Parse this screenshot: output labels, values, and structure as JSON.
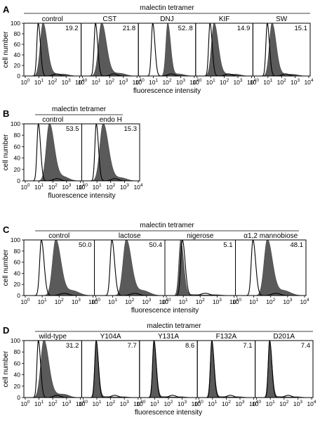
{
  "figure": {
    "panels": [
      {
        "letter": "A",
        "header": "malectin tetramer",
        "ylabel": "cell number",
        "xlabel": "fluorescence intensity",
        "yticks": [
          "0",
          "20",
          "40",
          "60",
          "80",
          "100"
        ],
        "xtick_labels": [
          "10",
          "10",
          "10",
          "10",
          "10"
        ],
        "xtick_exponents": [
          "0",
          "1",
          "2",
          "3",
          "4"
        ],
        "subplots": [
          {
            "label": "control",
            "value": "19.2",
            "peak_log": 1.3,
            "width": 0.25,
            "tail": 0.2
          },
          {
            "label": "CST",
            "value": "21.8",
            "peak_log": 1.4,
            "width": 0.28,
            "tail": 0.25
          },
          {
            "label": "DNJ",
            "value": "52..8",
            "peak_log": 2.05,
            "width": 0.17,
            "tail": 0.12
          },
          {
            "label": "KIF",
            "value": "14.9",
            "peak_log": 1.25,
            "width": 0.24,
            "tail": 0.2
          },
          {
            "label": "SW",
            "value": "15.1",
            "peak_log": 1.3,
            "width": 0.24,
            "tail": 0.18
          }
        ]
      },
      {
        "letter": "B",
        "header": "malectin tetramer",
        "ylabel": "cell number",
        "xlabel": "fluorescence intensity",
        "yticks": [
          "0",
          "20",
          "40",
          "60",
          "80",
          "100"
        ],
        "xtick_labels": [
          "10",
          "10",
          "10",
          "10",
          "10"
        ],
        "xtick_exponents": [
          "0",
          "1",
          "2",
          "3",
          "4"
        ],
        "subplots": [
          {
            "label": "control",
            "value": "53.5",
            "peak_log": 1.75,
            "width": 0.28,
            "tail": 0.25
          },
          {
            "label": "endo H",
            "value": "15.3",
            "peak_log": 1.45,
            "width": 0.3,
            "tail": 0.25
          }
        ]
      },
      {
        "letter": "C",
        "header": "malectin tetramer",
        "ylabel": "cell number",
        "xlabel": "fluorescence intensity",
        "yticks": [
          "0",
          "20",
          "40",
          "60",
          "80",
          "100"
        ],
        "xtick_labels": [
          "10",
          "10",
          "10",
          "10",
          "10"
        ],
        "xtick_exponents": [
          "0",
          "1",
          "2",
          "3",
          "4"
        ],
        "subplots": [
          {
            "label": "control",
            "value": "50.0",
            "peak_log": 1.8,
            "width": 0.24,
            "tail": 0.3
          },
          {
            "label": "lactose",
            "value": "50.4",
            "peak_log": 1.8,
            "width": 0.24,
            "tail": 0.3
          },
          {
            "label": "nigerose",
            "value": "5.1",
            "peak_log": 0.85,
            "width": 0.14,
            "tail": 0.1
          },
          {
            "label": "α1,2 mannobiose",
            "value": "48.1",
            "peak_log": 1.8,
            "width": 0.24,
            "tail": 0.3
          }
        ]
      },
      {
        "letter": "D",
        "header": "malectin tetramer",
        "ylabel": "cell number",
        "xlabel": "fluorescence intensity",
        "yticks": [
          "0",
          "20",
          "40",
          "60",
          "80",
          "100"
        ],
        "xtick_labels": [
          "10",
          "10",
          "10",
          "10",
          "10"
        ],
        "xtick_exponents": [
          "0",
          "1",
          "2",
          "3",
          "4"
        ],
        "subplots": [
          {
            "label": "wild-type",
            "value": "31.2",
            "peak_log": 1.35,
            "width": 0.28,
            "tail": 0.3
          },
          {
            "label": "Y104A",
            "value": "7.7",
            "peak_log": 0.95,
            "width": 0.14,
            "tail": 0.1
          },
          {
            "label": "Y131A",
            "value": "8.6",
            "peak_log": 0.95,
            "width": 0.14,
            "tail": 0.1
          },
          {
            "label": "F132A",
            "value": "7.1",
            "peak_log": 0.95,
            "width": 0.14,
            "tail": 0.1
          },
          {
            "label": "D201A",
            "value": "7.4",
            "peak_log": 0.95,
            "width": 0.14,
            "tail": 0.1
          }
        ]
      }
    ]
  },
  "chart_data": [
    {
      "type": "area",
      "title": "malectin tetramer",
      "xlabel": "fluorescence intensity",
      "ylabel": "cell number",
      "x_scale": "log",
      "xlim": [
        1,
        10000
      ],
      "ylim": [
        0,
        100
      ],
      "series": [
        {
          "name": "control",
          "value": 19.2
        },
        {
          "name": "CST",
          "value": 21.8
        },
        {
          "name": "DNJ",
          "value": "52..8"
        },
        {
          "name": "KIF",
          "value": 14.9
        },
        {
          "name": "SW",
          "value": 15.1
        }
      ]
    },
    {
      "type": "area",
      "title": "malectin tetramer",
      "xlabel": "fluorescence intensity",
      "ylabel": "cell number",
      "x_scale": "log",
      "xlim": [
        1,
        10000
      ],
      "ylim": [
        0,
        100
      ],
      "series": [
        {
          "name": "control",
          "value": 53.5
        },
        {
          "name": "endo H",
          "value": 15.3
        }
      ]
    },
    {
      "type": "area",
      "title": "malectin tetramer",
      "xlabel": "fluorescence intensity",
      "ylabel": "cell number",
      "x_scale": "log",
      "xlim": [
        1,
        10000
      ],
      "ylim": [
        0,
        100
      ],
      "series": [
        {
          "name": "control",
          "value": 50.0
        },
        {
          "name": "lactose",
          "value": 50.4
        },
        {
          "name": "nigerose",
          "value": 5.1
        },
        {
          "name": "α1,2 mannobiose",
          "value": 48.1
        }
      ]
    },
    {
      "type": "area",
      "title": "malectin tetramer",
      "xlabel": "fluorescence intensity",
      "ylabel": "cell number",
      "x_scale": "log",
      "xlim": [
        1,
        10000
      ],
      "ylim": [
        0,
        100
      ],
      "series": [
        {
          "name": "wild-type",
          "value": 31.2
        },
        {
          "name": "Y104A",
          "value": 7.7
        },
        {
          "name": "Y131A",
          "value": 8.6
        },
        {
          "name": "F132A",
          "value": 7.1
        },
        {
          "name": "D201A",
          "value": 7.4
        }
      ]
    }
  ]
}
